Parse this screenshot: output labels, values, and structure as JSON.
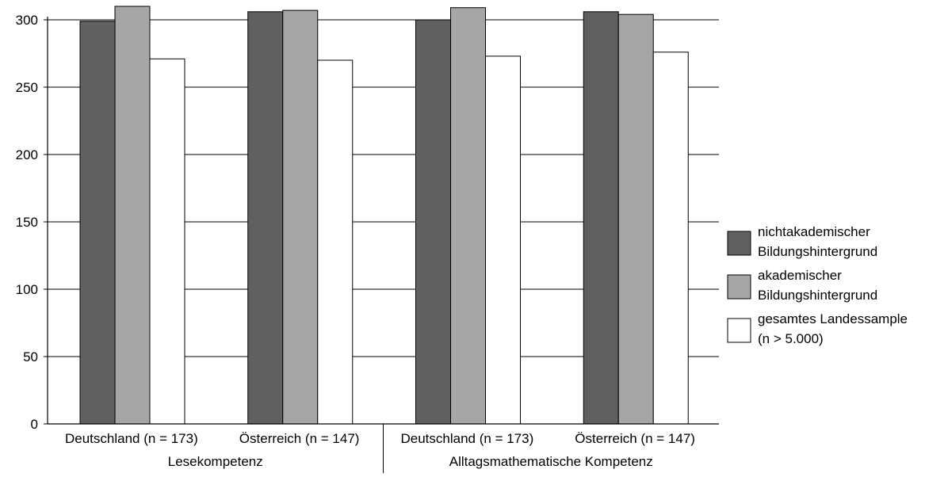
{
  "chart_data": {
    "type": "bar",
    "title": "",
    "xlabel": "",
    "ylabel": "",
    "ylim": [
      0,
      300
    ],
    "y_ticks": [
      0,
      50,
      100,
      150,
      200,
      250,
      300
    ],
    "grid": "horizontal",
    "legend_position": "right",
    "groups": [
      {
        "label": "Lesekompetenz",
        "categories": [
          "Deutschland (n = 173)",
          "Österreich (n = 147)"
        ]
      },
      {
        "label": "Alltagsmathematische Kompetenz",
        "categories": [
          "Deutschland (n = 173)",
          "Österreich (n = 147)"
        ]
      }
    ],
    "series": [
      {
        "name": "nichtakademischer Bildungshintergrund",
        "legend_lines": [
          "nichtakademischer",
          "Bildungshintergrund"
        ],
        "color": "#606060",
        "values": [
          299,
          306,
          300,
          306
        ]
      },
      {
        "name": "akademischer Bildungshintergrund",
        "legend_lines": [
          "akademischer",
          "Bildungshintergrund"
        ],
        "color": "#a6a6a9",
        "values": [
          310,
          307,
          309,
          304
        ]
      },
      {
        "name": "gesamtes Landessample (n > 5.000)",
        "legend_lines": [
          "gesamtes Landessample",
          "(n > 5.000)"
        ],
        "color": "#ffffff",
        "values": [
          271,
          270,
          273,
          276
        ]
      }
    ]
  }
}
